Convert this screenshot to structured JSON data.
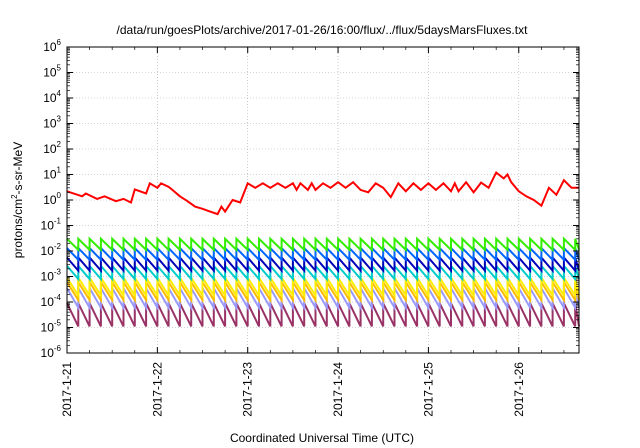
{
  "chart_data": {
    "type": "line",
    "title": "/data/run/goesPlots/archive/2017-01-26/16:00/flux/../flux/5daysMarsFluxes.txt",
    "xlabel": "Coordinated Universal Time (UTC)",
    "ylabel": {
      "prefix": "protons/cm",
      "superscript": "2",
      "suffix": "-s-sr-MeV"
    },
    "yscale": "log",
    "ylim": [
      1e-06,
      1000000.0
    ],
    "ytick_exponents": [
      -6,
      -5,
      -4,
      -3,
      -2,
      -1,
      0,
      1,
      2,
      3,
      4,
      5,
      6
    ],
    "ytick_base": "10",
    "xlim": [
      "2017-01-21",
      "2017-01-26T16:00"
    ],
    "xticks": [
      {
        "date": "2017-01-21",
        "label": "2017-1-21"
      },
      {
        "date": "2017-01-22",
        "label": "2017-1-22"
      },
      {
        "date": "2017-01-23",
        "label": "2017-1-23"
      },
      {
        "date": "2017-01-24",
        "label": "2017-1-24"
      },
      {
        "date": "2017-01-25",
        "label": "2017-1-25"
      },
      {
        "date": "2017-01-26",
        "label": "2017-1-26"
      }
    ],
    "grid": true,
    "sawtooth_period_hours": 3,
    "series": [
      {
        "color": "#ff0000",
        "x_hours": [
          0,
          4,
          5,
          8,
          10,
          13,
          15,
          17,
          18,
          21,
          22,
          24,
          25,
          27,
          28,
          30,
          32,
          34,
          36,
          38,
          40,
          41,
          42,
          44,
          46,
          48,
          50,
          52,
          54,
          56,
          58,
          60,
          61,
          62,
          64,
          65,
          66,
          68,
          70,
          72,
          74,
          76,
          78,
          80,
          82,
          84,
          86,
          88,
          90,
          92,
          94,
          96,
          98,
          100,
          102,
          103,
          104,
          106,
          108,
          110,
          112,
          114,
          116,
          117,
          118,
          120,
          122,
          124,
          126,
          128,
          130,
          132,
          134,
          136,
          136
        ],
        "y": [
          2.2,
          1.4,
          1.8,
          1.1,
          1.4,
          0.9,
          1.1,
          0.8,
          2.6,
          1.8,
          4.5,
          3.0,
          4.5,
          3.3,
          2.5,
          1.4,
          0.9,
          0.55,
          0.45,
          0.35,
          0.28,
          0.55,
          0.35,
          1.0,
          0.8,
          4.5,
          3.0,
          4.5,
          3.0,
          4.5,
          3.0,
          4.5,
          2.5,
          4.5,
          2.5,
          4.5,
          2.5,
          4.5,
          3.0,
          5.0,
          3.0,
          5.0,
          2.5,
          2.0,
          4.5,
          3.0,
          1.3,
          4.5,
          2.2,
          4.5,
          2.5,
          4.5,
          2.5,
          4.5,
          2.2,
          4.5,
          2.2,
          5.0,
          2.0,
          4.8,
          3.0,
          12.0,
          7.0,
          10.0,
          5.0,
          2.2,
          1.4,
          1.0,
          0.6,
          3.0,
          1.6,
          6.0,
          3.0,
          3.0,
          3.0
        ]
      },
      {
        "color": "#33ee00",
        "peak": 0.03,
        "trough": 0.011
      },
      {
        "color": "#0066ff",
        "peak": 0.013,
        "trough": 0.0045
      },
      {
        "color": "#0000bb",
        "peak": 0.0055,
        "trough": 0.0017
      },
      {
        "color": "#00cccc",
        "peak": 0.0026,
        "trough": 0.0008
      },
      {
        "color": "#ffee00",
        "peak": 0.0009,
        "trough": 0.00018
      },
      {
        "color": "#ffbb00",
        "peak": 0.0006,
        "trough": 0.00012
      },
      {
        "color": "#9999ff",
        "peak": 0.00035,
        "trough": 6e-05
      },
      {
        "color": "#993366",
        "peak": 9e-05,
        "trough": 1.1e-05
      }
    ]
  }
}
